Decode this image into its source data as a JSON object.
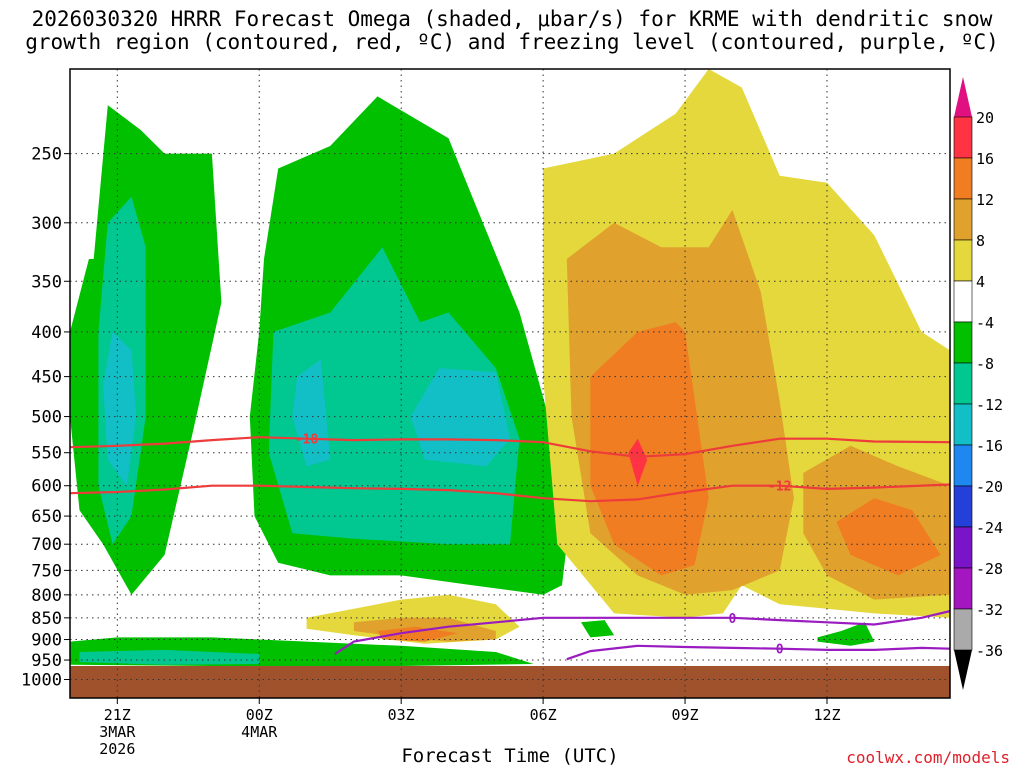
{
  "title_line1": "2026030320 HRRR Forecast Omega (shaded, μbar/s) for KRME with dendritic snow",
  "title_line2": "growth region (contoured, red, ºC) and freezing level (contoured, purple, ºC)",
  "credit": "coolwx.com/models",
  "chart_data": {
    "type": "heatmap",
    "xlabel": "Forecast Time (UTC)",
    "ylabel": "",
    "x_ticks": [
      {
        "label": "21Z",
        "sub1": "3MAR",
        "sub2": "2026",
        "hour": 0
      },
      {
        "label": "00Z",
        "sub1": "4MAR",
        "sub2": "",
        "hour": 3
      },
      {
        "label": "03Z",
        "sub1": "",
        "sub2": "",
        "hour": 6
      },
      {
        "label": "06Z",
        "sub1": "",
        "sub2": "",
        "hour": 9
      },
      {
        "label": "09Z",
        "sub1": "",
        "sub2": "",
        "hour": 12
      },
      {
        "label": "12Z",
        "sub1": "",
        "sub2": "",
        "hour": 15
      }
    ],
    "xlim": [
      -1,
      17.6
    ],
    "y_ticks": [
      250,
      300,
      350,
      400,
      450,
      500,
      550,
      600,
      650,
      700,
      750,
      800,
      850,
      900,
      950,
      1000
    ],
    "ylim": [
      200,
      1050
    ],
    "y_log": true,
    "colorbar": {
      "labels": [
        "20",
        "16",
        "12",
        "8",
        "4",
        "-4",
        "-8",
        "-12",
        "-16",
        "-20",
        "-24",
        "-28",
        "-32",
        "-36"
      ],
      "colors": [
        "#ff3344",
        "#f07d22",
        "#e0a22c",
        "#e4d83c",
        "#ffffff",
        "#00c000",
        "#00c890",
        "#12bfc7",
        "#1e88f0",
        "#2440d8",
        "#7a14c8",
        "#a316c0",
        "#aaaaaa"
      ],
      "top_arrow_color": "#e01080",
      "bottom_arrow_color": "#000000"
    },
    "ground_color": "#a0522d",
    "ground_top_hPa": 965,
    "dendritic_contours": [
      {
        "label": "-18",
        "x": [
          -1,
          0,
          1,
          2,
          3,
          4,
          5,
          6,
          7,
          8,
          9,
          10,
          11,
          12,
          13,
          14,
          15,
          16,
          17.6
        ],
        "y": [
          542,
          540,
          537,
          532,
          528,
          530,
          532,
          531,
          531,
          532,
          535,
          548,
          556,
          552,
          540,
          530,
          530,
          534,
          535
        ]
      },
      {
        "label": "-12",
        "x": [
          -1,
          0,
          1,
          2,
          3,
          4,
          5,
          6,
          7,
          8,
          9,
          10,
          11,
          12,
          13,
          14,
          15,
          16,
          17.6
        ],
        "y": [
          612,
          610,
          606,
          600,
          600,
          602,
          604,
          605,
          607,
          612,
          620,
          625,
          622,
          610,
          600,
          600,
          605,
          603,
          598
        ]
      }
    ],
    "freezing_contours": [
      {
        "label": "0",
        "x": [
          4.6,
          5.0,
          6.0,
          7.0,
          8.0,
          9.0,
          10.0,
          11.0,
          12.0,
          13.0,
          14.0,
          15.0,
          16.0,
          17.0,
          17.6
        ],
        "y": [
          935,
          905,
          885,
          870,
          860,
          850,
          850,
          850,
          850,
          850,
          855,
          860,
          865,
          850,
          835
        ]
      },
      {
        "label": "0",
        "x": [
          9.5,
          10.0,
          11.0,
          12.0,
          13.0,
          14.0,
          15.0,
          16.0,
          17.0,
          17.6
        ],
        "y": [
          948,
          928,
          915,
          918,
          920,
          922,
          925,
          925,
          920,
          922
        ]
      }
    ],
    "omega_regions": [
      {
        "level": -4,
        "x": [
          -0.5,
          -0.2,
          0.5,
          1.0,
          2.0,
          2.2,
          1.6,
          1.0,
          0.3,
          -0.3,
          -0.8,
          -1.0,
          -1.0,
          -0.6
        ],
        "y": [
          330,
          220,
          235,
          250,
          250,
          370,
          520,
          720,
          800,
          700,
          640,
          500,
          400,
          330
        ]
      },
      {
        "level": -4,
        "x": [
          3.1,
          3.4,
          4.5,
          5.5,
          7.0,
          7.5,
          8.5,
          9.2,
          9.5,
          9.4,
          9.0,
          7.5,
          6.0,
          4.5,
          3.4,
          2.9,
          2.8,
          3.0
        ],
        "y": [
          330,
          260,
          245,
          215,
          240,
          280,
          380,
          520,
          700,
          780,
          800,
          780,
          760,
          760,
          735,
          650,
          500,
          400
        ]
      },
      {
        "level": -4,
        "x": [
          -1.0,
          0.0,
          2.0,
          4.0,
          6.0,
          8.0,
          8.8,
          6.0,
          2.0,
          -1.0
        ],
        "y": [
          905,
          895,
          895,
          905,
          915,
          930,
          960,
          965,
          965,
          962
        ]
      },
      {
        "level": -4,
        "x": [
          9.8,
          10.3,
          10.5,
          10.0
        ],
        "y": [
          860,
          855,
          890,
          895
        ]
      },
      {
        "level": -4,
        "x": [
          14.8,
          15.3,
          15.8,
          16.0,
          15.5,
          14.8
        ],
        "y": [
          895,
          880,
          860,
          905,
          915,
          905
        ]
      },
      {
        "level": -8,
        "x": [
          -0.2,
          0.3,
          0.6,
          0.6,
          0.3,
          -0.1,
          -0.4,
          -0.4
        ],
        "y": [
          300,
          280,
          320,
          500,
          650,
          700,
          600,
          400
        ]
      },
      {
        "level": -8,
        "x": [
          3.3,
          4.5,
          5.6,
          6.4,
          7.0,
          8.0,
          8.5,
          8.3,
          7.0,
          5.0,
          3.7,
          3.2
        ],
        "y": [
          400,
          380,
          320,
          390,
          380,
          440,
          530,
          700,
          700,
          690,
          680,
          550
        ]
      },
      {
        "level": -8,
        "x": [
          -0.8,
          1.0,
          3.0,
          3.0,
          1.0,
          -0.8
        ],
        "y": [
          930,
          925,
          935,
          960,
          962,
          955
        ]
      },
      {
        "level": -12,
        "x": [
          -0.1,
          0.3,
          0.4,
          0.2,
          -0.2,
          -0.3
        ],
        "y": [
          400,
          420,
          500,
          600,
          560,
          460
        ]
      },
      {
        "level": -12,
        "x": [
          6.8,
          8.0,
          8.3,
          7.8,
          6.5,
          6.2
        ],
        "y": [
          440,
          445,
          530,
          570,
          560,
          500
        ]
      },
      {
        "level": -12,
        "x": [
          3.8,
          4.3,
          4.5,
          4.0,
          3.7
        ],
        "y": [
          450,
          430,
          560,
          570,
          500
        ]
      },
      {
        "level": 4,
        "x": [
          9.0,
          10.5,
          11.8,
          12.5,
          13.2,
          14.0,
          15.0,
          16.0,
          17.0,
          17.6,
          17.6,
          16.0,
          15.0,
          14.0,
          13.2,
          12.8,
          12.0,
          10.5,
          9.3,
          9.0
        ],
        "y": [
          260,
          250,
          225,
          200,
          210,
          265,
          270,
          310,
          400,
          420,
          850,
          840,
          830,
          820,
          780,
          840,
          850,
          840,
          700,
          450
        ]
      },
      {
        "level": 4,
        "x": [
          4.0,
          5.0,
          6.0,
          7.0,
          8.0,
          8.5,
          8.0,
          6.5,
          5.0,
          4.0
        ],
        "y": [
          850,
          830,
          810,
          800,
          820,
          870,
          900,
          910,
          890,
          875
        ]
      },
      {
        "level": 8,
        "x": [
          9.5,
          10.5,
          11.5,
          12.5,
          13.0,
          13.6,
          14.0,
          14.3,
          14.0,
          13.0,
          12.0,
          11.0,
          10.0,
          9.6
        ],
        "y": [
          330,
          300,
          320,
          320,
          290,
          360,
          480,
          620,
          750,
          790,
          800,
          760,
          680,
          500
        ]
      },
      {
        "level": 8,
        "x": [
          14.5,
          15.5,
          16.5,
          17.6,
          17.6,
          16.0,
          15.0,
          14.5
        ],
        "y": [
          580,
          540,
          570,
          600,
          800,
          810,
          760,
          680
        ]
      },
      {
        "level": 8,
        "x": [
          5.0,
          6.0,
          7.0,
          8.0,
          8.0,
          7.0,
          6.0,
          5.0
        ],
        "y": [
          860,
          850,
          850,
          880,
          900,
          905,
          895,
          880
        ]
      },
      {
        "level": 12,
        "x": [
          10.0,
          11.0,
          11.8,
          12.0,
          12.3,
          12.5,
          12.2,
          11.5,
          10.5,
          10.0
        ],
        "y": [
          450,
          400,
          390,
          400,
          520,
          620,
          740,
          760,
          700,
          600
        ]
      },
      {
        "level": 12,
        "x": [
          15.2,
          16.0,
          16.8,
          17.4,
          16.5,
          15.5
        ],
        "y": [
          660,
          620,
          640,
          720,
          760,
          720
        ]
      },
      {
        "level": 12,
        "x": [
          5.5,
          6.3,
          7.2,
          6.5,
          5.6
        ],
        "y": [
          880,
          870,
          885,
          905,
          900
        ]
      },
      {
        "level": 16,
        "x": [
          10.8,
          11.0,
          11.2,
          11.0
        ],
        "y": [
          550,
          530,
          560,
          600
        ]
      }
    ]
  }
}
